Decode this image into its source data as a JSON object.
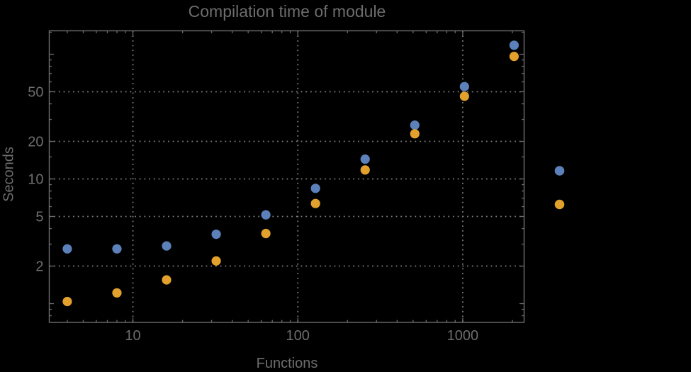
{
  "chart_data": {
    "type": "scatter",
    "title": "Compilation time of module",
    "xlabel": "Functions",
    "ylabel": "Seconds",
    "x_scale": "log",
    "y_scale": "log",
    "xlim": [
      3.11,
      2355
    ],
    "ylim": [
      0.707,
      154
    ],
    "grid": true,
    "x": [
      4,
      8,
      16,
      32,
      64,
      128,
      256,
      512,
      1024,
      2048
    ],
    "series": [
      {
        "name": "series-1",
        "color": "#5C81BA",
        "values": [
          2.75,
          2.75,
          2.9,
          3.6,
          5.15,
          8.4,
          14.4,
          27,
          55,
          118
        ]
      },
      {
        "name": "series-2",
        "color": "#E2A02C",
        "values": [
          1.04,
          1.22,
          1.55,
          2.2,
          3.65,
          6.35,
          11.8,
          23,
          46,
          96
        ]
      }
    ],
    "x_axis": {
      "labeled_ticks": [
        10,
        100,
        1000
      ],
      "labeled_tick_texts": [
        "10",
        "100",
        "1000"
      ],
      "minor_ticks": [
        4,
        5,
        6,
        7,
        8,
        9,
        20,
        30,
        40,
        50,
        60,
        70,
        80,
        90,
        200,
        300,
        400,
        500,
        600,
        700,
        800,
        900,
        2000
      ],
      "gridlines": [
        10,
        100,
        1000
      ]
    },
    "y_axis": {
      "labeled_ticks": [
        2,
        5,
        10,
        20,
        50
      ],
      "labeled_tick_texts": [
        "2",
        "5",
        "10",
        "20",
        "50"
      ],
      "unlabeled_major_ticks": [
        1,
        100
      ],
      "minor_ticks": [
        0.8,
        0.9,
        3,
        4,
        6,
        7,
        8,
        9,
        15,
        30,
        40,
        60,
        70,
        80,
        90,
        150
      ],
      "gridlines": [
        2,
        5,
        10,
        20,
        50
      ]
    },
    "legend": {
      "position": "right-outside",
      "items": [
        {
          "series": "series-1",
          "color": "#5C81BA",
          "label": ""
        },
        {
          "series": "series-2",
          "color": "#E2A02C",
          "label": ""
        }
      ]
    },
    "colors": {
      "background": "#000000",
      "frame": "#6d6d6d",
      "grid": "#7d7d7d",
      "text": "#6d6d6d",
      "series1": "#5C81BA",
      "series2": "#E2A02C"
    }
  }
}
